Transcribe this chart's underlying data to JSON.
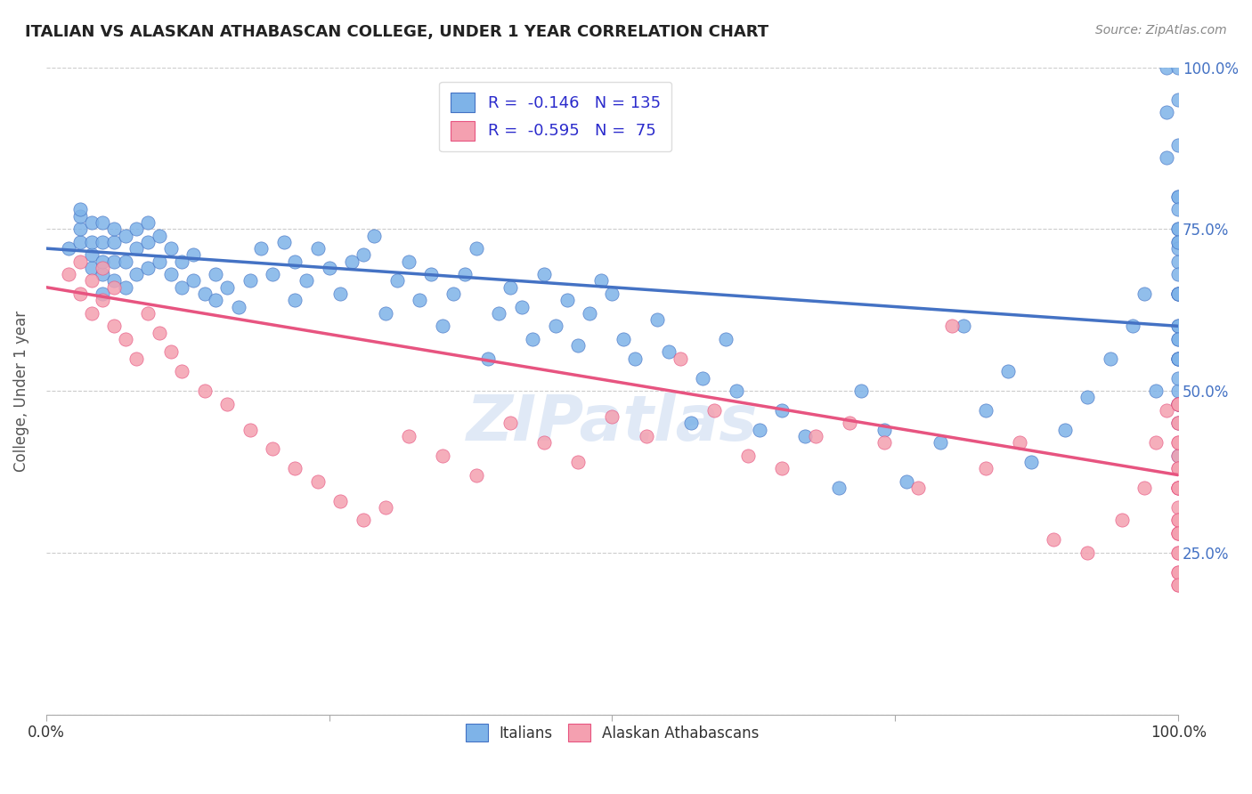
{
  "title": "ITALIAN VS ALASKAN ATHABASCAN COLLEGE, UNDER 1 YEAR CORRELATION CHART",
  "source": "Source: ZipAtlas.com",
  "ylabel": "College, Under 1 year",
  "xlabel": "",
  "xlim": [
    0,
    1
  ],
  "ylim": [
    0,
    1
  ],
  "xticks": [
    0,
    0.25,
    0.5,
    0.75,
    1.0
  ],
  "xticklabels": [
    "0.0%",
    "",
    "",
    "",
    "100.0%"
  ],
  "ytick_labels_right": [
    "25.0%",
    "50.0%",
    "75.0%",
    "100.0%"
  ],
  "ytick_positions_right": [
    0.25,
    0.5,
    0.75,
    1.0
  ],
  "blue_color": "#7EB3E8",
  "pink_color": "#F4A0B0",
  "blue_line_color": "#4472C4",
  "pink_line_color": "#E75480",
  "R_blue": -0.146,
  "N_blue": 135,
  "R_pink": -0.595,
  "N_pink": 75,
  "legend_R_color": "#2B2BCC",
  "legend_N_color": "#CC2222",
  "watermark": "ZIPatlas",
  "blue_scatter_x": [
    0.02,
    0.03,
    0.03,
    0.03,
    0.03,
    0.04,
    0.04,
    0.04,
    0.04,
    0.05,
    0.05,
    0.05,
    0.05,
    0.05,
    0.06,
    0.06,
    0.06,
    0.06,
    0.07,
    0.07,
    0.07,
    0.08,
    0.08,
    0.08,
    0.09,
    0.09,
    0.09,
    0.1,
    0.1,
    0.11,
    0.11,
    0.12,
    0.12,
    0.13,
    0.13,
    0.14,
    0.15,
    0.15,
    0.16,
    0.17,
    0.18,
    0.19,
    0.2,
    0.21,
    0.22,
    0.22,
    0.23,
    0.24,
    0.25,
    0.26,
    0.27,
    0.28,
    0.29,
    0.3,
    0.31,
    0.32,
    0.33,
    0.34,
    0.35,
    0.36,
    0.37,
    0.38,
    0.39,
    0.4,
    0.41,
    0.42,
    0.43,
    0.44,
    0.45,
    0.46,
    0.47,
    0.48,
    0.49,
    0.5,
    0.51,
    0.52,
    0.54,
    0.55,
    0.57,
    0.58,
    0.6,
    0.61,
    0.63,
    0.65,
    0.67,
    0.7,
    0.72,
    0.74,
    0.76,
    0.79,
    0.81,
    0.83,
    0.85,
    0.87,
    0.9,
    0.92,
    0.94,
    0.96,
    0.97,
    0.98,
    0.99,
    0.99,
    0.99,
    1.0,
    1.0,
    1.0,
    1.0,
    1.0,
    1.0,
    1.0,
    1.0,
    1.0,
    1.0,
    1.0,
    1.0,
    1.0,
    1.0,
    1.0,
    1.0,
    1.0,
    1.0,
    1.0,
    1.0,
    1.0,
    1.0,
    1.0,
    1.0,
    1.0,
    1.0,
    1.0,
    1.0,
    1.0,
    1.0,
    1.0,
    1.0
  ],
  "blue_scatter_y": [
    0.72,
    0.73,
    0.75,
    0.77,
    0.78,
    0.69,
    0.71,
    0.73,
    0.76,
    0.65,
    0.68,
    0.7,
    0.73,
    0.76,
    0.67,
    0.7,
    0.73,
    0.75,
    0.66,
    0.7,
    0.74,
    0.68,
    0.72,
    0.75,
    0.69,
    0.73,
    0.76,
    0.7,
    0.74,
    0.68,
    0.72,
    0.66,
    0.7,
    0.67,
    0.71,
    0.65,
    0.64,
    0.68,
    0.66,
    0.63,
    0.67,
    0.72,
    0.68,
    0.73,
    0.64,
    0.7,
    0.67,
    0.72,
    0.69,
    0.65,
    0.7,
    0.71,
    0.74,
    0.62,
    0.67,
    0.7,
    0.64,
    0.68,
    0.6,
    0.65,
    0.68,
    0.72,
    0.55,
    0.62,
    0.66,
    0.63,
    0.58,
    0.68,
    0.6,
    0.64,
    0.57,
    0.62,
    0.67,
    0.65,
    0.58,
    0.55,
    0.61,
    0.56,
    0.45,
    0.52,
    0.58,
    0.5,
    0.44,
    0.47,
    0.43,
    0.35,
    0.5,
    0.44,
    0.36,
    0.42,
    0.6,
    0.47,
    0.53,
    0.39,
    0.44,
    0.49,
    0.55,
    0.6,
    0.65,
    0.5,
    0.93,
    1.0,
    0.86,
    1.0,
    0.95,
    0.88,
    0.73,
    0.8,
    0.65,
    0.55,
    0.48,
    0.7,
    0.75,
    0.6,
    0.5,
    0.65,
    0.55,
    0.4,
    0.75,
    0.58,
    0.65,
    0.72,
    0.48,
    0.55,
    0.8,
    0.65,
    0.78,
    0.6,
    0.52,
    0.58,
    0.68,
    0.73,
    0.55,
    0.48,
    0.45
  ],
  "pink_scatter_x": [
    0.02,
    0.03,
    0.03,
    0.04,
    0.04,
    0.05,
    0.05,
    0.06,
    0.06,
    0.07,
    0.08,
    0.09,
    0.1,
    0.11,
    0.12,
    0.14,
    0.16,
    0.18,
    0.2,
    0.22,
    0.24,
    0.26,
    0.28,
    0.3,
    0.32,
    0.35,
    0.38,
    0.41,
    0.44,
    0.47,
    0.5,
    0.53,
    0.56,
    0.59,
    0.62,
    0.65,
    0.68,
    0.71,
    0.74,
    0.77,
    0.8,
    0.83,
    0.86,
    0.89,
    0.92,
    0.95,
    0.97,
    0.98,
    0.99,
    1.0,
    1.0,
    1.0,
    1.0,
    1.0,
    1.0,
    1.0,
    1.0,
    1.0,
    1.0,
    1.0,
    1.0,
    1.0,
    1.0,
    1.0,
    1.0,
    1.0,
    1.0,
    1.0,
    1.0,
    1.0,
    1.0,
    1.0,
    1.0,
    1.0,
    1.0
  ],
  "pink_scatter_y": [
    0.68,
    0.65,
    0.7,
    0.62,
    0.67,
    0.64,
    0.69,
    0.6,
    0.66,
    0.58,
    0.55,
    0.62,
    0.59,
    0.56,
    0.53,
    0.5,
    0.48,
    0.44,
    0.41,
    0.38,
    0.36,
    0.33,
    0.3,
    0.32,
    0.43,
    0.4,
    0.37,
    0.45,
    0.42,
    0.39,
    0.46,
    0.43,
    0.55,
    0.47,
    0.4,
    0.38,
    0.43,
    0.45,
    0.42,
    0.35,
    0.6,
    0.38,
    0.42,
    0.27,
    0.25,
    0.3,
    0.35,
    0.42,
    0.47,
    0.45,
    0.4,
    0.35,
    0.22,
    0.28,
    0.2,
    0.32,
    0.48,
    0.38,
    0.25,
    0.3,
    0.42,
    0.35,
    0.28,
    0.22,
    0.45,
    0.38,
    0.3,
    0.25,
    0.42,
    0.35,
    0.48,
    0.2,
    0.35,
    0.28,
    0.48
  ],
  "blue_line_x0": 0.0,
  "blue_line_x1": 1.0,
  "blue_line_y0": 0.72,
  "blue_line_y1": 0.6,
  "pink_line_x0": 0.0,
  "pink_line_x1": 1.0,
  "pink_line_y0": 0.66,
  "pink_line_y1": 0.37
}
